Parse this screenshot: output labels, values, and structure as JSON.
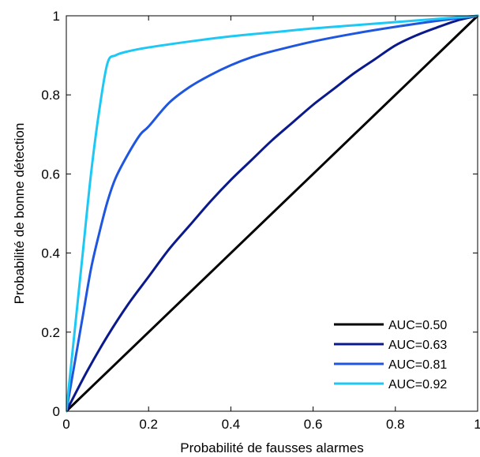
{
  "chart_data": {
    "type": "line",
    "xlabel": "Probabilité de fausses alarmes",
    "ylabel": "Probabilité de bonne détection",
    "xlim": [
      0,
      1
    ],
    "ylim": [
      0,
      1
    ],
    "xticks": [
      "0",
      "0.2",
      "0.4",
      "0.6",
      "0.8",
      "1"
    ],
    "yticks": [
      "0",
      "0.2",
      "0.4",
      "0.6",
      "0.8",
      "1"
    ],
    "grid": false,
    "legend_position": "bottom-right",
    "series": [
      {
        "name": "AUC=0.50",
        "color": "#000000",
        "x": [
          0,
          1
        ],
        "y": [
          0,
          1
        ]
      },
      {
        "name": "AUC=0.63",
        "color": "#0a1a8c",
        "x": [
          0,
          0.05,
          0.1,
          0.15,
          0.2,
          0.25,
          0.3,
          0.35,
          0.4,
          0.45,
          0.5,
          0.55,
          0.6,
          0.65,
          0.7,
          0.75,
          0.8,
          0.85,
          0.9,
          0.95,
          1
        ],
        "y": [
          0,
          0.1,
          0.19,
          0.27,
          0.34,
          0.41,
          0.47,
          0.53,
          0.585,
          0.635,
          0.685,
          0.73,
          0.775,
          0.815,
          0.855,
          0.89,
          0.925,
          0.95,
          0.97,
          0.988,
          1
        ]
      },
      {
        "name": "AUC=0.81",
        "color": "#1f56e0",
        "x": [
          0,
          0.01,
          0.02,
          0.04,
          0.06,
          0.08,
          0.1,
          0.12,
          0.15,
          0.18,
          0.2,
          0.25,
          0.3,
          0.35,
          0.4,
          0.45,
          0.5,
          0.6,
          0.7,
          0.8,
          0.9,
          1
        ],
        "y": [
          0,
          0.06,
          0.12,
          0.24,
          0.36,
          0.45,
          0.53,
          0.59,
          0.65,
          0.7,
          0.72,
          0.78,
          0.82,
          0.85,
          0.875,
          0.895,
          0.91,
          0.935,
          0.955,
          0.972,
          0.987,
          1
        ]
      },
      {
        "name": "AUC=0.92",
        "color": "#1ec8f5",
        "x": [
          0,
          0.02,
          0.04,
          0.06,
          0.08,
          0.1,
          0.12,
          0.15,
          0.2,
          0.3,
          0.4,
          0.5,
          0.6,
          0.7,
          0.8,
          0.9,
          1
        ],
        "y": [
          0,
          0.2,
          0.4,
          0.6,
          0.76,
          0.88,
          0.9,
          0.91,
          0.92,
          0.935,
          0.948,
          0.958,
          0.968,
          0.976,
          0.984,
          0.992,
          1
        ]
      }
    ]
  }
}
